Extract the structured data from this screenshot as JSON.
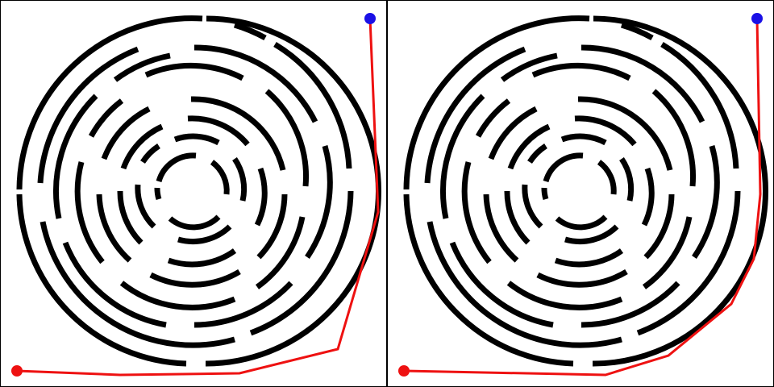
{
  "colors": {
    "wall": "#000000",
    "path": "#ee1111",
    "start_marker": "#ee1111",
    "end_marker": "#1a10e6",
    "background": "#ffffff",
    "border": "#000000"
  },
  "panels": [
    {
      "id": "left",
      "path_variant": "solution-path-a"
    },
    {
      "id": "right",
      "path_variant": "solution-path-b"
    }
  ],
  "maze": {
    "type": "circular",
    "rings": 8
  }
}
